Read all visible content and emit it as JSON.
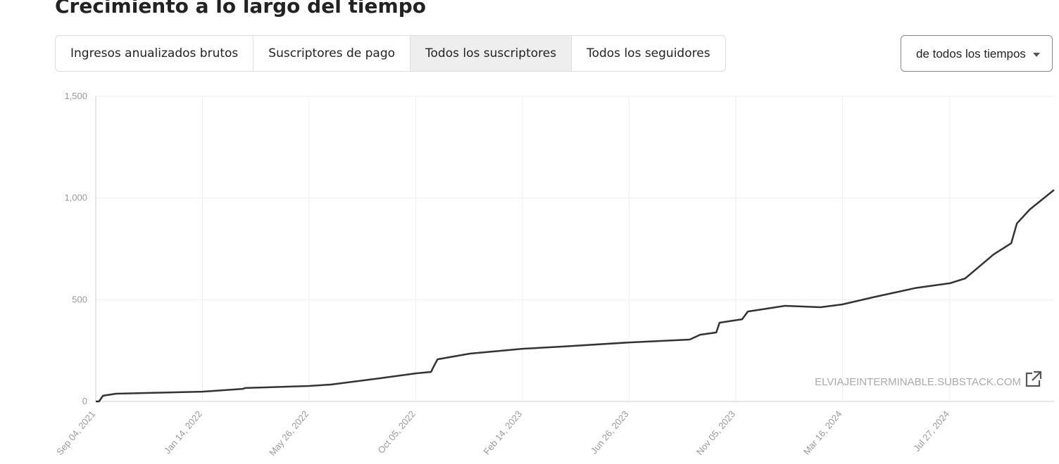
{
  "header": {
    "title": "Crecimiento a lo largo del tiempo"
  },
  "tabs": [
    "Ingresos anualizados brutos",
    "Suscriptores de pago",
    "Todos los suscriptores",
    "Todos los seguidores"
  ],
  "dropdown": "de todos los tiempos",
  "watermark": "ELVIAJEINTERMINABLE.SUBSTACK.COM",
  "chart_data": {
    "type": "line",
    "color": "#333333",
    "grid": true,
    "x": [
      "2021-09-04",
      "2021-09-08",
      "2021-09-13",
      "2021-09-29",
      "2021-12-12",
      "2022-01-14",
      "2022-03-05",
      "2022-03-08",
      "2022-05-26",
      "2022-06-22",
      "2022-08-22",
      "2022-10-05",
      "2022-10-24",
      "2022-10-26",
      "2022-11-01",
      "2022-12-11",
      "2023-02-14",
      "2023-04-06",
      "2023-06-26",
      "2023-09-09",
      "2023-09-22",
      "2023-10-12",
      "2023-10-16",
      "2023-11-13",
      "2023-11-20",
      "2024-01-05",
      "2024-02-18",
      "2024-03-16",
      "2024-04-23",
      "2024-06-14",
      "2024-07-27",
      "2024-08-15",
      "2024-09-19",
      "2024-10-11",
      "2024-10-18",
      "2024-11-03",
      "2024-12-03"
    ],
    "values": [
      0,
      0,
      28,
      38,
      45,
      48,
      62,
      66,
      76,
      83,
      114,
      138,
      145,
      162,
      207,
      235,
      259,
      270,
      290,
      304,
      328,
      339,
      387,
      404,
      442,
      470,
      463,
      477,
      512,
      557,
      581,
      605,
      722,
      778,
      875,
      944,
      1040
    ],
    "xlim": [
      "2021-09-04",
      "2024-12-03"
    ],
    "xticks": [
      {
        "value": "2021-09-04",
        "label": "Sep 04, 2021"
      },
      {
        "value": "2022-01-14",
        "label": "Jan 14, 2022"
      },
      {
        "value": "2022-05-26",
        "label": "May 26, 2022"
      },
      {
        "value": "2022-10-05",
        "label": "Oct 05, 2022"
      },
      {
        "value": "2023-02-14",
        "label": "Feb 14, 2023"
      },
      {
        "value": "2023-06-26",
        "label": "Jun 26, 2023"
      },
      {
        "value": "2023-11-05",
        "label": "Nov 05, 2023"
      },
      {
        "value": "2024-03-16",
        "label": "Mar 16, 2024"
      },
      {
        "value": "2024-07-27",
        "label": "Jul 27, 2024"
      }
    ],
    "ylim": [
      0,
      1500
    ],
    "yticks": [
      0,
      500,
      {
        "value": 1000,
        "label": "1,000"
      },
      {
        "value": 1500,
        "label": "1,500"
      }
    ]
  }
}
